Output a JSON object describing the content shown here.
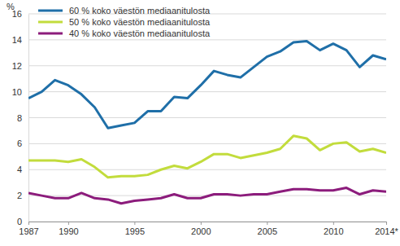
{
  "chart_data": {
    "type": "line",
    "ylabel": "%",
    "x": [
      1987,
      1988,
      1989,
      1990,
      1991,
      1992,
      1993,
      1994,
      1995,
      1996,
      1997,
      1998,
      1999,
      2000,
      2001,
      2002,
      2003,
      2004,
      2005,
      2006,
      2007,
      2008,
      2009,
      2010,
      2011,
      2012,
      2013,
      2014
    ],
    "series": [
      {
        "name": "60 % koko väestön mediaanitulosta",
        "color": "#1f6fa8",
        "values": [
          9.5,
          10.0,
          10.9,
          10.5,
          9.8,
          8.8,
          7.2,
          7.4,
          7.6,
          8.5,
          8.5,
          9.6,
          9.5,
          10.5,
          11.6,
          11.3,
          11.1,
          11.9,
          12.7,
          13.1,
          13.8,
          13.9,
          13.2,
          13.7,
          13.2,
          11.9,
          12.8,
          12.5
        ]
      },
      {
        "name": "50 % koko väestön mediaanitulosta",
        "color": "#c2dc3c",
        "values": [
          4.7,
          4.7,
          4.7,
          4.6,
          4.8,
          4.2,
          3.4,
          3.5,
          3.5,
          3.6,
          4.0,
          4.3,
          4.1,
          4.6,
          5.2,
          5.2,
          4.9,
          5.1,
          5.3,
          5.6,
          6.6,
          6.4,
          5.5,
          6.0,
          6.1,
          5.4,
          5.6,
          5.3
        ]
      },
      {
        "name": "40 % koko väestön mediaanitulosta",
        "color": "#8c1c7c",
        "values": [
          2.2,
          2.0,
          1.8,
          1.8,
          2.2,
          1.8,
          1.7,
          1.4,
          1.6,
          1.7,
          1.8,
          2.1,
          1.8,
          1.8,
          2.1,
          2.1,
          2.0,
          2.1,
          2.1,
          2.3,
          2.5,
          2.5,
          2.4,
          2.4,
          2.6,
          2.1,
          2.4,
          2.3
        ]
      }
    ],
    "xlim": [
      1987,
      2014
    ],
    "xticks": [
      1987,
      1990,
      1995,
      2000,
      2005,
      2010,
      {
        "value": 2014,
        "label": "2014*"
      }
    ],
    "ylim": [
      0,
      16
    ],
    "yticks": [
      0,
      2,
      4,
      6,
      8,
      10,
      12,
      14,
      16
    ],
    "grid": true,
    "legend": "top-left"
  }
}
